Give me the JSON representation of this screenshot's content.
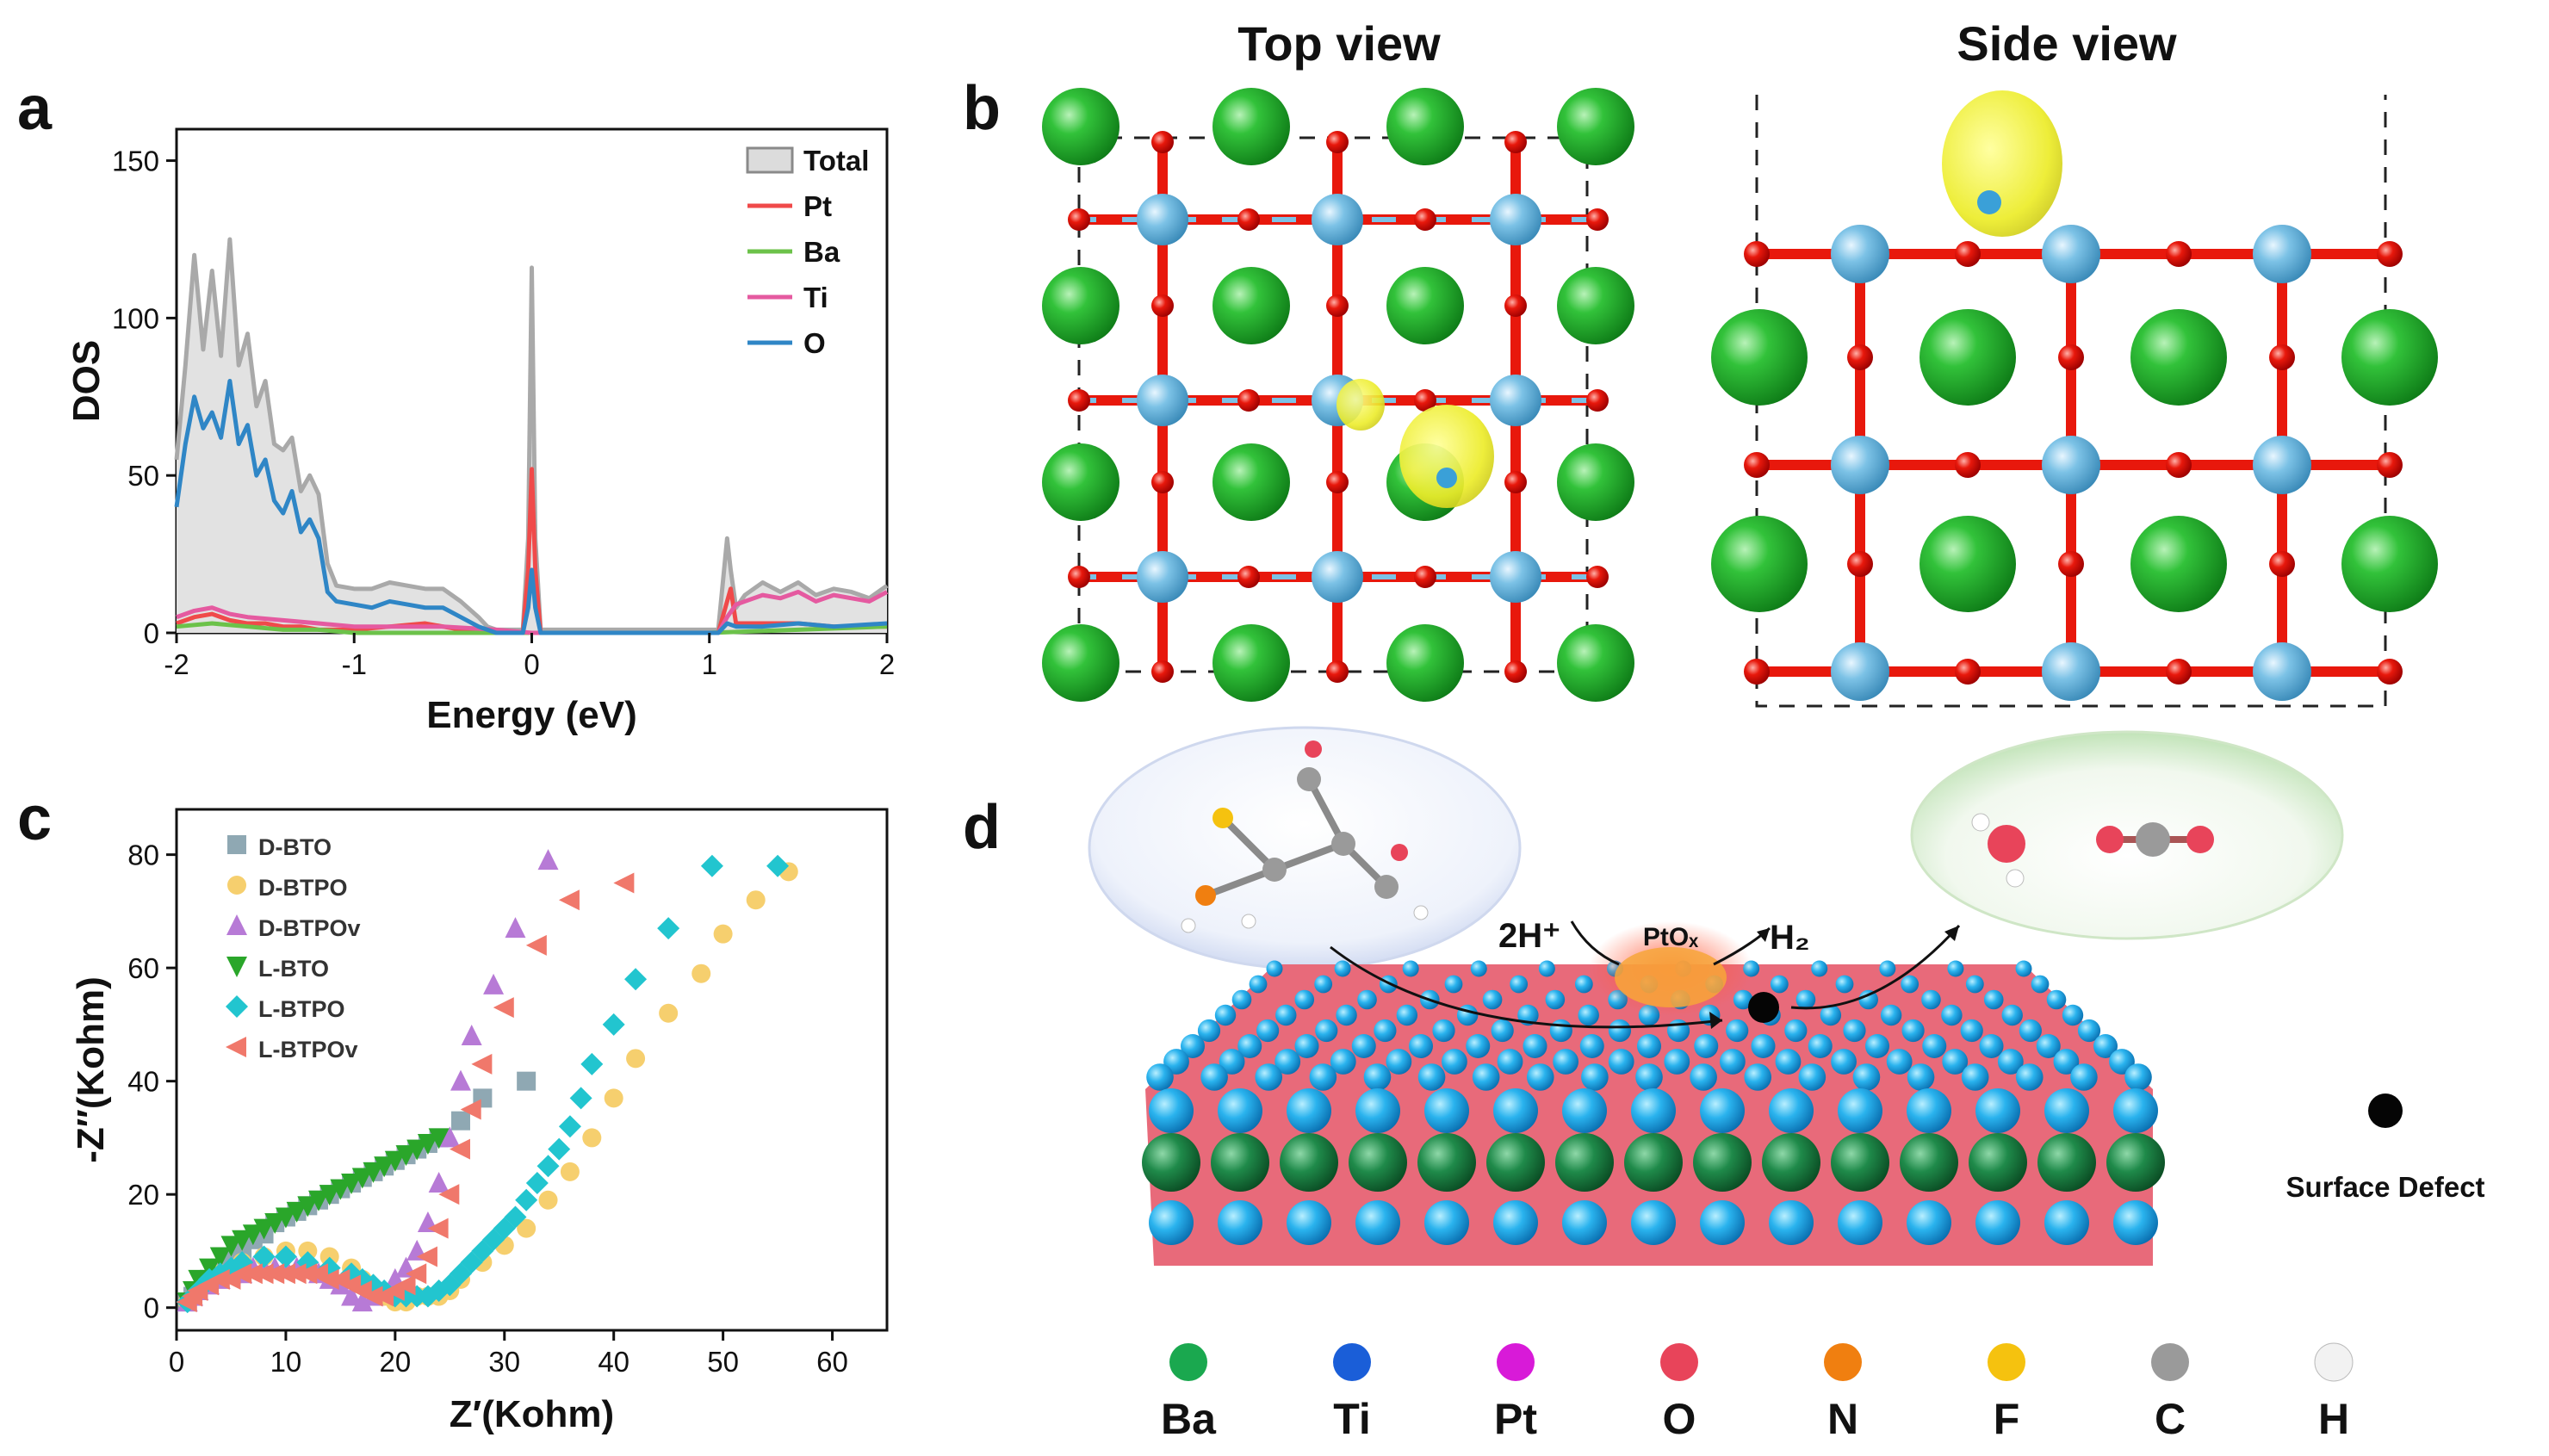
{
  "panels": {
    "a": "a",
    "b": "b",
    "c": "c",
    "d": "d",
    "top_view": "Top view",
    "side_view": "Side view"
  },
  "chart_data": [
    {
      "panel": "a",
      "type": "area",
      "xlabel": "Energy (eV)",
      "ylabel": "DOS",
      "xlim": [
        -2,
        2
      ],
      "ylim": [
        0,
        160
      ],
      "xticks": [
        "-2",
        "-1",
        "0",
        "1",
        "2"
      ],
      "yticks": [
        "0",
        "50",
        "100",
        "150"
      ],
      "legend_position": "top-right",
      "series": [
        {
          "name": "Total",
          "color": "#a9a9a9",
          "fill": true,
          "x": [
            -2,
            -1.95,
            -1.9,
            -1.85,
            -1.8,
            -1.75,
            -1.7,
            -1.65,
            -1.6,
            -1.55,
            -1.5,
            -1.45,
            -1.4,
            -1.35,
            -1.3,
            -1.25,
            -1.2,
            -1.15,
            -1.1,
            -1.0,
            -0.9,
            -0.8,
            -0.7,
            -0.6,
            -0.5,
            -0.4,
            -0.3,
            -0.25,
            -0.2,
            -0.05,
            -0.02,
            0,
            0.02,
            0.05,
            1.05,
            1.1,
            1.12,
            1.15,
            1.2,
            1.3,
            1.4,
            1.5,
            1.6,
            1.7,
            1.8,
            1.9,
            2.0
          ],
          "y": [
            55,
            85,
            120,
            90,
            115,
            88,
            125,
            85,
            95,
            72,
            80,
            60,
            58,
            62,
            45,
            50,
            44,
            22,
            15,
            14,
            14,
            16,
            15,
            14,
            14,
            10,
            5,
            2,
            1,
            1,
            30,
            116,
            30,
            1,
            1,
            30,
            20,
            8,
            12,
            16,
            13,
            16,
            12,
            14,
            13,
            11,
            15
          ]
        },
        {
          "name": "Pt",
          "color": "#f04a4a",
          "x": [
            -2,
            -1.9,
            -1.8,
            -1.7,
            -1.6,
            -1.5,
            -1.4,
            -1.3,
            -1.2,
            -1.0,
            -0.8,
            -0.6,
            -0.4,
            -0.2,
            -0.05,
            -0.02,
            0,
            0.02,
            0.05,
            1.05,
            1.1,
            1.12,
            1.15,
            1.3,
            1.5,
            1.7,
            2.0
          ],
          "y": [
            3,
            5,
            6,
            4,
            3,
            3,
            2,
            2,
            1,
            1,
            2,
            3,
            1,
            0,
            0,
            20,
            52,
            20,
            0,
            0,
            10,
            14,
            3,
            3,
            3,
            2,
            2
          ]
        },
        {
          "name": "Ba",
          "color": "#6cc24a",
          "x": [
            -2,
            -1.8,
            -1.6,
            -1.4,
            -1.2,
            -1.0,
            0,
            1.0,
            1.5,
            2.0
          ],
          "y": [
            2,
            3,
            2,
            1,
            1,
            0,
            0,
            0,
            1,
            2
          ]
        },
        {
          "name": "Ti",
          "color": "#e55aa0",
          "x": [
            -2,
            -1.9,
            -1.8,
            -1.7,
            -1.6,
            -1.4,
            -1.2,
            -1.0,
            -0.8,
            -0.5,
            -0.2,
            0,
            1.05,
            1.1,
            1.15,
            1.2,
            1.3,
            1.4,
            1.5,
            1.6,
            1.7,
            1.8,
            1.9,
            2.0
          ],
          "y": [
            5,
            7,
            8,
            6,
            5,
            4,
            3,
            2,
            2,
            2,
            1,
            0,
            0,
            5,
            9,
            10,
            12,
            11,
            13,
            10,
            12,
            11,
            10,
            13
          ]
        },
        {
          "name": "O",
          "color": "#2f86c6",
          "x": [
            -2,
            -1.95,
            -1.9,
            -1.85,
            -1.8,
            -1.75,
            -1.7,
            -1.65,
            -1.6,
            -1.55,
            -1.5,
            -1.45,
            -1.4,
            -1.35,
            -1.3,
            -1.25,
            -1.2,
            -1.15,
            -1.1,
            -1.0,
            -0.9,
            -0.8,
            -0.7,
            -0.6,
            -0.5,
            -0.4,
            -0.3,
            -0.25,
            -0.2,
            -0.05,
            -0.02,
            0,
            0.02,
            0.05,
            1.05,
            1.1,
            1.15,
            1.3,
            1.5,
            1.7,
            2.0
          ],
          "y": [
            40,
            60,
            75,
            65,
            70,
            62,
            80,
            60,
            66,
            50,
            55,
            42,
            38,
            45,
            32,
            36,
            30,
            13,
            10,
            9,
            8,
            10,
            9,
            8,
            8,
            5,
            2,
            1,
            0,
            0,
            8,
            20,
            8,
            0,
            0,
            3,
            2,
            2,
            3,
            2,
            3
          ]
        }
      ]
    },
    {
      "panel": "c",
      "type": "scatter",
      "xlabel": "Z′(Kohm)",
      "ylabel": "-Z′′(Kohm)",
      "xlim": [
        0,
        65
      ],
      "ylim": [
        -4,
        88
      ],
      "xticks": [
        "0",
        "10",
        "20",
        "30",
        "40",
        "50",
        "60"
      ],
      "yticks": [
        "0",
        "20",
        "40",
        "60",
        "80"
      ],
      "legend_position": "top-left",
      "series": [
        {
          "name": "D-BTO",
          "marker": "square",
          "color": "#8fa8b3",
          "x": [
            1,
            1.5,
            2,
            3,
            4,
            5,
            6,
            7,
            8,
            9,
            10,
            11,
            12,
            13,
            14,
            15,
            16,
            17,
            18,
            19,
            20,
            21,
            22,
            23,
            24,
            26,
            28,
            32
          ],
          "y": [
            1,
            2,
            3,
            5,
            7,
            9,
            10,
            12,
            13,
            15,
            16,
            17,
            18,
            19,
            20,
            21,
            22,
            23,
            24,
            25,
            26,
            27,
            28,
            29,
            30,
            33,
            37,
            40
          ]
        },
        {
          "name": "D-BTPO",
          "marker": "circle",
          "color": "#f6cf6e",
          "x": [
            1,
            2,
            3,
            4,
            6,
            8,
            10,
            12,
            14,
            16,
            17,
            18,
            19,
            20,
            21,
            22,
            23,
            24,
            25,
            26,
            28,
            30,
            32,
            34,
            36,
            38,
            40,
            42,
            45,
            48,
            50,
            53,
            56
          ],
          "y": [
            1,
            3,
            5,
            6,
            8,
            9,
            10,
            10,
            9,
            7,
            5,
            3,
            2,
            1,
            1,
            2,
            2,
            2,
            3,
            5,
            8,
            11,
            14,
            19,
            24,
            30,
            37,
            44,
            52,
            59,
            66,
            72,
            77
          ]
        },
        {
          "name": "D-BTPOv",
          "marker": "triangle-up",
          "color": "#b77ad6",
          "x": [
            1,
            1.5,
            2,
            3,
            4,
            5,
            6,
            7,
            8,
            9,
            10,
            11,
            12,
            13,
            14,
            15,
            16,
            17,
            18,
            19,
            20,
            21,
            22,
            23,
            24,
            25,
            26,
            27,
            29,
            31,
            34
          ],
          "y": [
            1,
            2,
            3,
            4,
            5,
            6,
            6,
            7,
            7,
            7,
            7,
            7,
            7,
            6,
            5,
            4,
            2,
            1,
            2,
            3,
            5,
            7,
            10,
            15,
            22,
            30,
            40,
            48,
            57,
            67,
            79
          ]
        },
        {
          "name": "L-BTO",
          "marker": "triangle-down",
          "color": "#2aa62a",
          "x": [
            1,
            1.5,
            2,
            3,
            4,
            5,
            6,
            7,
            8,
            9,
            10,
            11,
            12,
            13,
            14,
            15,
            16,
            17,
            18,
            19,
            20,
            21,
            22,
            23,
            24
          ],
          "y": [
            1,
            3,
            5,
            7,
            9,
            11,
            12,
            13,
            14,
            15,
            16,
            17,
            18,
            19,
            20,
            21,
            22,
            23,
            24,
            25,
            26,
            27,
            28,
            29,
            30
          ]
        },
        {
          "name": "L-BTPO",
          "marker": "diamond",
          "color": "#22c5cf",
          "x": [
            1,
            2,
            3,
            4,
            5,
            6,
            8,
            10,
            12,
            14,
            16,
            17,
            18,
            19,
            20,
            21,
            22,
            23,
            24,
            25,
            26,
            27,
            28,
            29,
            30,
            31,
            32,
            33,
            34,
            35,
            36,
            37,
            38,
            40,
            42,
            45,
            49,
            55
          ],
          "y": [
            1,
            3,
            5,
            6,
            7,
            8,
            9,
            9,
            8,
            7,
            6,
            5,
            4,
            3,
            2,
            2,
            2,
            2,
            3,
            4,
            6,
            8,
            10,
            12,
            14,
            16,
            19,
            22,
            25,
            28,
            32,
            37,
            43,
            50,
            58,
            67,
            78,
            78
          ]
        },
        {
          "name": "L-BTPOv",
          "marker": "triangle-left",
          "color": "#f0786b",
          "x": [
            1,
            1.5,
            2,
            3,
            4,
            5,
            6,
            7,
            8,
            9,
            10,
            11,
            12,
            13,
            14,
            15,
            16,
            17,
            18,
            19,
            20,
            21,
            22,
            23,
            24,
            25,
            26,
            27,
            28,
            30,
            33,
            36,
            41
          ],
          "y": [
            1,
            2,
            3,
            4,
            5,
            5,
            6,
            6,
            6,
            6,
            6,
            6,
            6,
            6,
            5,
            5,
            4,
            3,
            2,
            2,
            3,
            4,
            6,
            9,
            14,
            20,
            28,
            35,
            43,
            53,
            64,
            72,
            75
          ]
        }
      ]
    }
  ],
  "structure_b": {
    "legend_a": [
      "Total",
      "Pt",
      "Ba",
      "Ti",
      "O"
    ]
  },
  "panel_d": {
    "reaction_left": "2H⁺",
    "catalyst": "PtOₓ",
    "product": "H₂",
    "defect_label": "Surface Defect",
    "elements": [
      {
        "symbol": "Ba",
        "color": "#1aa84f"
      },
      {
        "symbol": "Ti",
        "color": "#1a5ed8"
      },
      {
        "symbol": "Pt",
        "color": "#d81ad8"
      },
      {
        "symbol": "O",
        "color": "#e8445a"
      },
      {
        "symbol": "N",
        "color": "#f07f10"
      },
      {
        "symbol": "F",
        "color": "#f5c20f"
      },
      {
        "symbol": "C",
        "color": "#9a9a9a"
      },
      {
        "symbol": "H",
        "color": "#f2f2f2"
      }
    ]
  }
}
